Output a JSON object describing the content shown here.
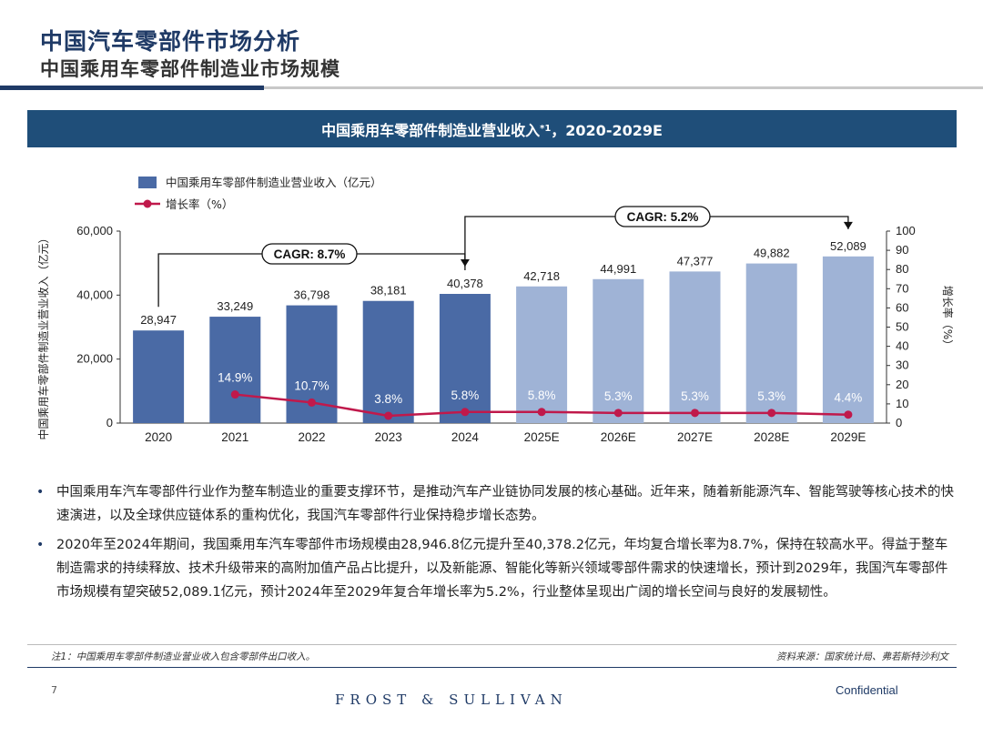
{
  "header": {
    "title": "中国汽车零部件市场分析",
    "subtitle": "中国乘用车零部件制造业市场规模"
  },
  "banner": {
    "title": "中国乘用车零部件制造业营业收入",
    "sup": "*1",
    "range": "，2020-2029E"
  },
  "colors": {
    "bar_actual": "#4a6aa5",
    "bar_forecast": "#9fb3d6",
    "line": "#c0194b",
    "navy": "#1f3a66"
  },
  "chart_data": {
    "type": "bar",
    "categories": [
      "2020",
      "2021",
      "2022",
      "2023",
      "2024",
      "2025E",
      "2026E",
      "2027E",
      "2028E",
      "2029E"
    ],
    "series": [
      {
        "name": "中国乘用车零部件制造业营业收入（亿元）",
        "type": "bar",
        "values": [
          28947,
          33249,
          36798,
          38181,
          40378,
          42718,
          44991,
          47377,
          49882,
          52089
        ],
        "labels": [
          "28,947",
          "33,249",
          "36,798",
          "38,181",
          "40,378",
          "42,718",
          "44,991",
          "47,377",
          "49,882",
          "52,089"
        ]
      },
      {
        "name": "增长率（%）",
        "type": "line",
        "axis": "right",
        "values": [
          null,
          14.9,
          10.7,
          3.8,
          5.8,
          5.8,
          5.3,
          5.3,
          5.3,
          4.4
        ],
        "labels": [
          "",
          "14.9%",
          "10.7%",
          "3.8%",
          "5.8%",
          "5.8%",
          "5.3%",
          "5.3%",
          "5.3%",
          "4.4%"
        ]
      }
    ],
    "ylabel": "中国乘用车零部件制造业营业收入（亿元）",
    "y2label": "增长率（%）",
    "ylim": [
      0,
      60000
    ],
    "yticks": [
      "0",
      "20,000",
      "40,000",
      "60,000"
    ],
    "y2lim": [
      0,
      100
    ],
    "y2ticks": [
      "0",
      "10",
      "20",
      "30",
      "40",
      "50",
      "60",
      "70",
      "80",
      "90",
      "100"
    ],
    "forecast_start_index": 5,
    "legend_position": "top-left",
    "grid": false,
    "annotations": [
      {
        "text": "CAGR: 8.7%",
        "from": "2020",
        "to": "2024"
      },
      {
        "text": "CAGR: 5.2%",
        "from": "2024",
        "to": "2029E"
      }
    ]
  },
  "bullets": [
    "中国乘用车汽车零部件行业作为整车制造业的重要支撑环节，是推动汽车产业链协同发展的核心基础。近年来，随着新能源汽车、智能驾驶等核心技术的快速演进，以及全球供应链体系的重构优化，我国汽车零部件行业保持稳步增长态势。",
    "2020年至2024年期间，我国乘用车汽车零部件市场规模由28,946.8亿元提升至40,378.2亿元，年均复合增长率为8.7%，保持在较高水平。得益于整车制造需求的持续释放、技术升级带来的高附加值产品占比提升，以及新能源、智能化等新兴领域零部件需求的快速增长，预计到2029年，我国汽车零部件市场规模有望突破52,089.1亿元，预计2024年至2029年复合年增长率为5.2%，行业整体呈现出广阔的增长空间与良好的发展韧性。"
  ],
  "footer": {
    "note": "注1：中国乘用车零部件制造业营业收入包含零部件出口收入。",
    "source": "资料来源：国家统计局、弗若斯特沙利文",
    "page": "7",
    "logo": "FROST & SULLIVAN",
    "confidential": "Confidential"
  }
}
